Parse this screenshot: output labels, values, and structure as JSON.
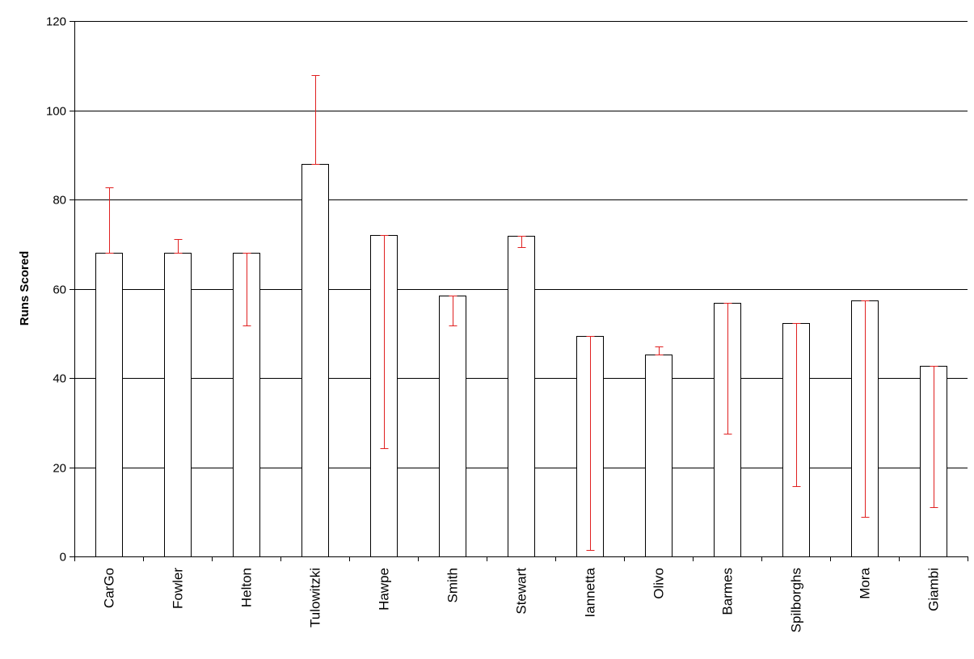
{
  "chart_data": {
    "type": "bar",
    "title": "",
    "xlabel": "",
    "ylabel": "Runs Scored",
    "ylim": [
      0,
      120
    ],
    "yticks": [
      0,
      20,
      40,
      60,
      80,
      100,
      120
    ],
    "ytick_labels": [
      "0",
      "20",
      "40",
      "60",
      "80",
      "100",
      "120"
    ],
    "grid": "horizontal",
    "legend": "none",
    "colors": {
      "bar_fill": "#ffffff",
      "bar_stroke": "#000000",
      "error_bar": "#e02020",
      "gridline": "#000000"
    },
    "categories": [
      "CarGo",
      "Fowler",
      "Helton",
      "Tulowitzki",
      "Hawpe",
      "Smith",
      "Stewart",
      "Iannetta",
      "Olivo",
      "Barmes",
      "Spilborghs",
      "Mora",
      "Giambi"
    ],
    "values": [
      68,
      68,
      68,
      88,
      72,
      58.5,
      71.8,
      49.5,
      45.3,
      56.8,
      52.3,
      57.3,
      42.8
    ],
    "error_bars": [
      {
        "low": 68,
        "high": 82.8
      },
      {
        "low": 68,
        "high": 71.2
      },
      {
        "low": 51.8,
        "high": 68
      },
      {
        "low": 88,
        "high": 107.8
      },
      {
        "low": 24.3,
        "high": 72
      },
      {
        "low": 51.8,
        "high": 58.5
      },
      {
        "low": 69.3,
        "high": 71.8
      },
      {
        "low": 1.5,
        "high": 49.5
      },
      {
        "low": 45.3,
        "high": 47.1
      },
      {
        "low": 27.5,
        "high": 56.8
      },
      {
        "low": 15.8,
        "high": 52.3
      },
      {
        "low": 8.8,
        "high": 57.3
      },
      {
        "low": 11,
        "high": 42.8
      }
    ]
  }
}
